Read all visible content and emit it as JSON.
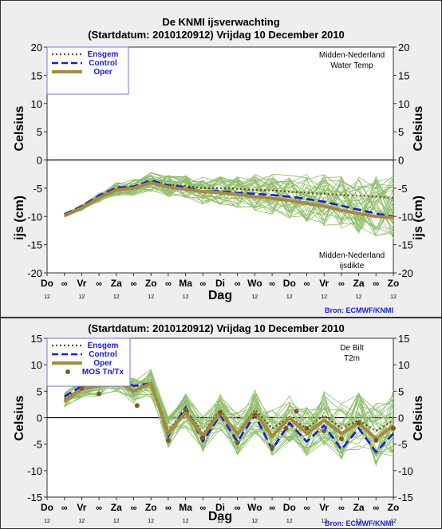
{
  "chart_data": [
    {
      "type": "line",
      "title": "De KNMI ijsverwachting",
      "subtitle": "(Startdatum: 2010120912)   Vrijdag   10 December  2010",
      "ylabel_top": "Celsius",
      "ylabel_bottom": "ijs (cm)",
      "xlabel": "Dag",
      "ylim": [
        -20,
        20
      ],
      "yticks": [
        -20,
        -15,
        -10,
        -5,
        0,
        5,
        10,
        15,
        20
      ],
      "xticks": [
        "Do",
        "∞",
        "Vr",
        "∞",
        "Za",
        "∞",
        "Zo",
        "∞",
        "Ma",
        "∞",
        "Di",
        "∞",
        "Wo",
        "∞",
        "Do",
        "∞",
        "Vr",
        "∞",
        "Za",
        "∞",
        "Zo"
      ],
      "xsub": [
        "12",
        "",
        "12",
        "",
        "12",
        "",
        "12",
        "",
        "12",
        "",
        "12",
        "",
        "12",
        "",
        "12",
        "",
        "12",
        "",
        "12",
        "",
        "12"
      ],
      "annotation_top": [
        "Midden-Nederland",
        "Water Temp"
      ],
      "annotation_bottom": [
        "Midden-Nederland",
        "ijsdikte"
      ],
      "source": "Bron: ECMWF/KNMI",
      "grid": false,
      "legend_position": "top-left",
      "x": [
        0.5,
        1,
        1.5,
        2,
        2.5,
        3,
        3.5,
        4,
        4.5,
        5,
        5.5,
        6,
        6.5,
        7,
        7.5,
        8,
        8.5,
        9,
        9.5,
        10
      ],
      "series": [
        {
          "name": "Ensgem",
          "color": "#6b4a1a",
          "style": "dotted",
          "values": [
            -9.7,
            -8.3,
            -6.5,
            -5.0,
            -4.7,
            -3.8,
            -4.4,
            -4.6,
            -5.0,
            -5.0,
            -5.1,
            -5.3,
            -5.4,
            -5.6,
            -5.8,
            -6.0,
            -6.2,
            -6.3,
            -6.5,
            -6.7
          ]
        },
        {
          "name": "Control",
          "color": "#1a1adf",
          "style": "dashed",
          "values": [
            -9.6,
            -8.2,
            -6.3,
            -4.9,
            -4.7,
            -3.6,
            -4.5,
            -4.8,
            -5.6,
            -5.5,
            -5.8,
            -6.0,
            -6.2,
            -6.5,
            -6.9,
            -7.4,
            -8.1,
            -8.8,
            -9.5,
            -10.0
          ]
        },
        {
          "name": "Oper",
          "color": "#a88a3e",
          "style": "solid",
          "values": [
            -9.9,
            -8.5,
            -6.7,
            -5.3,
            -5.0,
            -4.0,
            -4.8,
            -5.2,
            -5.6,
            -5.8,
            -6.1,
            -6.5,
            -6.8,
            -7.2,
            -7.7,
            -8.2,
            -8.9,
            -9.5,
            -10.0,
            -10.2
          ]
        }
      ],
      "ensemble_color": "#8fbf6a"
    },
    {
      "type": "line",
      "subtitle": "(Startdatum: 2010120912)   Vrijdag   10 December  2010",
      "ylabel": "Celsius",
      "xlabel": "Dag",
      "ylim": [
        -15,
        15
      ],
      "yticks": [
        -15,
        -10,
        -5,
        0,
        5,
        10,
        15
      ],
      "xticks": [
        "Do",
        "∞",
        "Vr",
        "∞",
        "Za",
        "∞",
        "Zo",
        "∞",
        "Ma",
        "∞",
        "Di",
        "∞",
        "Wo",
        "∞",
        "Do",
        "∞",
        "Vr",
        "∞",
        "Za",
        "∞",
        "Zo"
      ],
      "xsub": [
        "12",
        "",
        "12",
        "",
        "12",
        "",
        "12",
        "",
        "12",
        "",
        "12",
        "",
        "12",
        "",
        "12",
        "",
        "12",
        "",
        "12",
        "",
        "12"
      ],
      "annotation": [
        "De Bilt",
        "T2m"
      ],
      "source": "Bron: ECMWF/KNMI",
      "grid": false,
      "legend_position": "top-left",
      "x": [
        0.5,
        1,
        1.5,
        2,
        2.5,
        3,
        3.5,
        4,
        4.5,
        5,
        5.5,
        6,
        6.5,
        7,
        7.5,
        8,
        8.5,
        9,
        9.5,
        10
      ],
      "series": [
        {
          "name": "Ensgem",
          "color": "#6b4a1a",
          "style": "dotted",
          "values": [
            3.5,
            5.5,
            6.0,
            7.5,
            5.0,
            6.5,
            -2.5,
            1.5,
            -3.0,
            1.5,
            -3.0,
            1.5,
            -2.0,
            0.0,
            -2.0,
            0.5,
            -2.0,
            -0.5,
            -2.5,
            -0.5
          ]
        },
        {
          "name": "Control",
          "color": "#1a1adf",
          "style": "dashed",
          "values": [
            4.0,
            6.0,
            6.5,
            7.5,
            6.0,
            6.5,
            -3.5,
            2.0,
            -4.5,
            0.5,
            -4.5,
            0.5,
            -6.0,
            -1.0,
            -4.5,
            -1.5,
            -6.0,
            -2.0,
            -6.5,
            -3.0
          ]
        },
        {
          "name": "Oper",
          "color": "#a88a3e",
          "style": "solid",
          "values": [
            3.0,
            5.5,
            6.0,
            7.0,
            5.0,
            6.5,
            -3.0,
            1.0,
            -3.5,
            1.0,
            -3.0,
            1.0,
            -3.5,
            0.0,
            -3.0,
            -0.5,
            -3.0,
            -1.0,
            -4.0,
            -1.5
          ]
        },
        {
          "name": "MOS Tn/Tx",
          "color": "#7a5a2a",
          "style": "markers",
          "points": [
            [
              0.5,
              8.0
            ],
            [
              1.0,
              5.5
            ],
            [
              1.5,
              4.5
            ],
            [
              2.0,
              7.8
            ],
            [
              2.6,
              2.3
            ],
            [
              3.5,
              -4.3
            ],
            [
              4.0,
              1.5
            ],
            [
              4.5,
              -3.8
            ],
            [
              5.0,
              1.0
            ],
            [
              5.5,
              -4.7
            ],
            [
              6.0,
              0.5
            ],
            [
              6.5,
              -5.5
            ],
            [
              6.9,
              -2.0
            ],
            [
              7.2,
              1.2
            ],
            [
              7.5,
              -2.0
            ],
            [
              8.0,
              -2.5
            ],
            [
              8.5,
              -4.0
            ],
            [
              9.0,
              -1.0
            ],
            [
              9.5,
              -4.3
            ],
            [
              10.0,
              -2.0
            ]
          ]
        }
      ],
      "ensemble_color": "#8fbf6a"
    }
  ]
}
